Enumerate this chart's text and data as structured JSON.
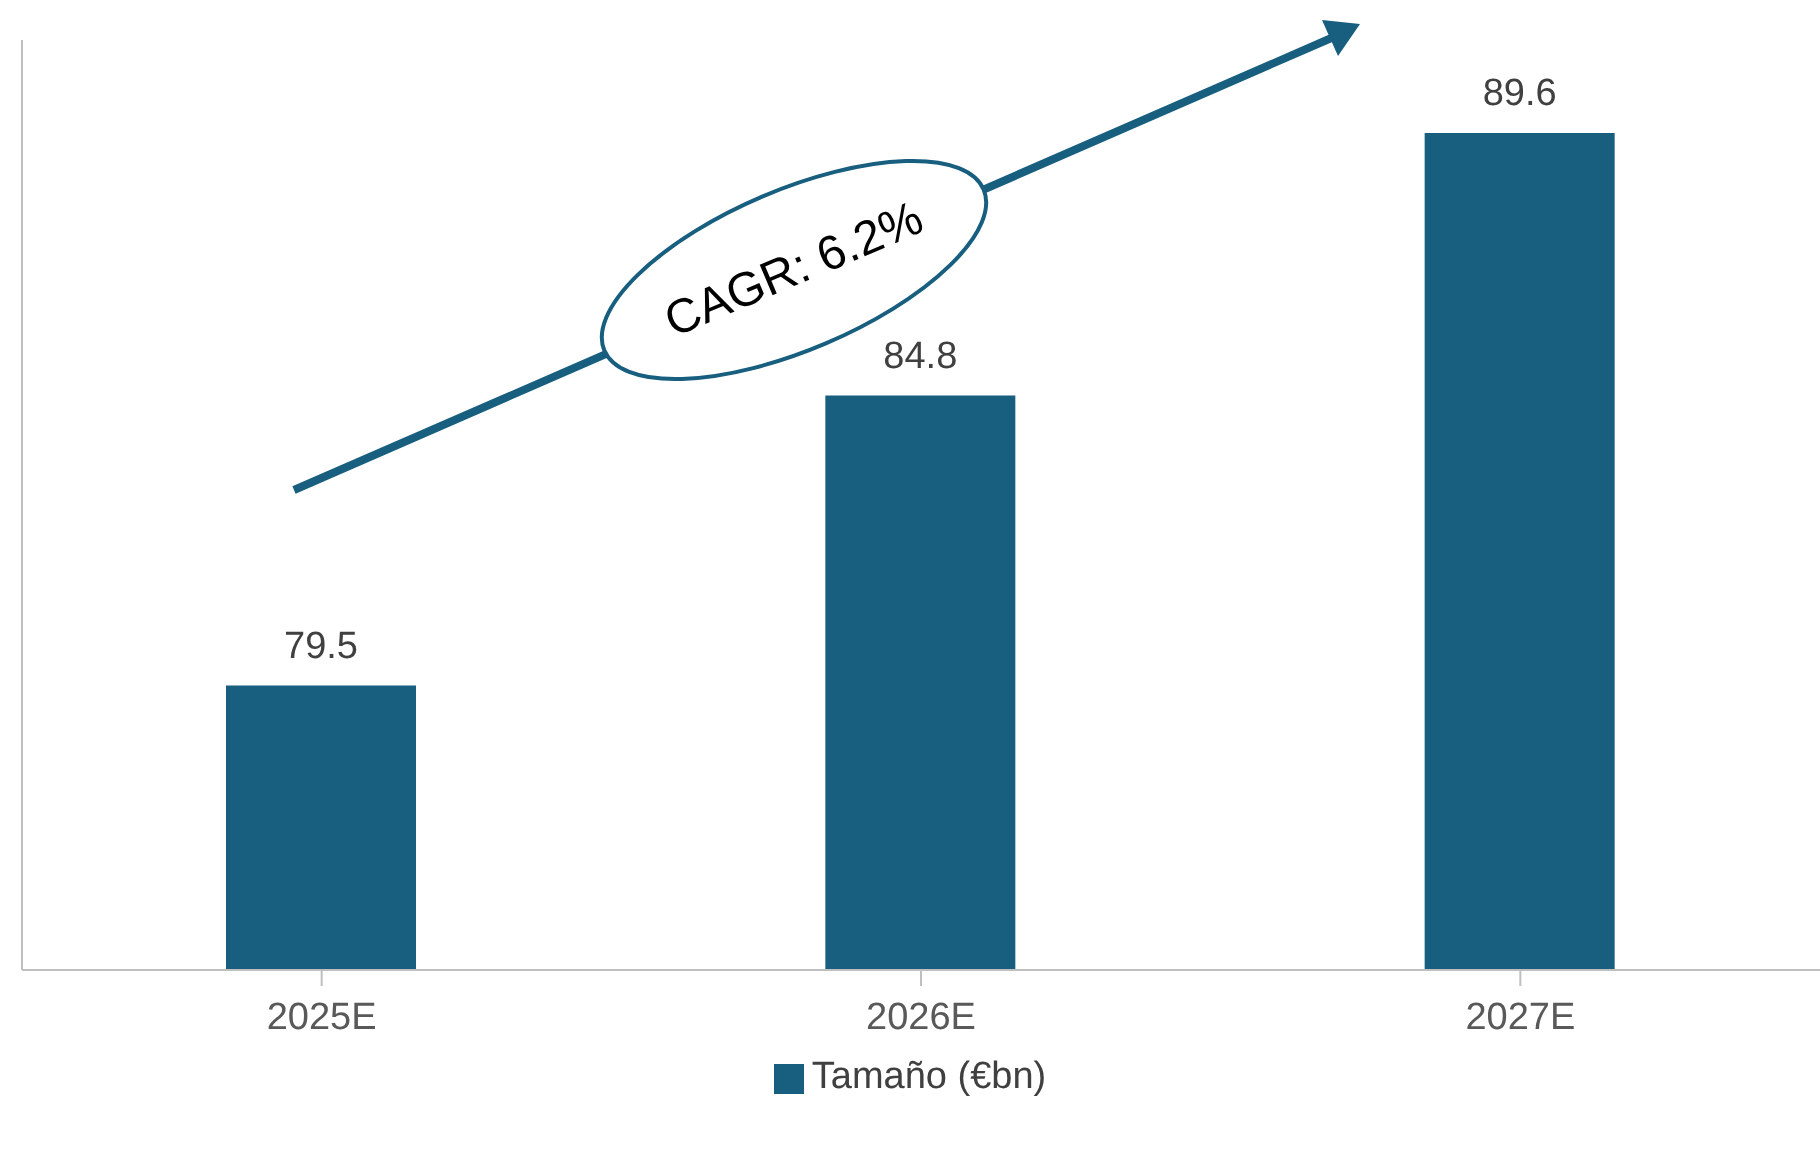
{
  "chart_data": {
    "type": "bar",
    "categories": [
      "2025E",
      "2026E",
      "2027E"
    ],
    "series": [
      {
        "name": "Tamaño (€bn)",
        "color": "#175e7f",
        "values": [
          79.5,
          84.8,
          89.6
        ]
      }
    ],
    "ylim": [
      74.3,
      91.3
    ],
    "data_labels": true,
    "grid": false,
    "legend": "bottom",
    "annotations": [
      "CAGR: 6.2%"
    ]
  }
}
